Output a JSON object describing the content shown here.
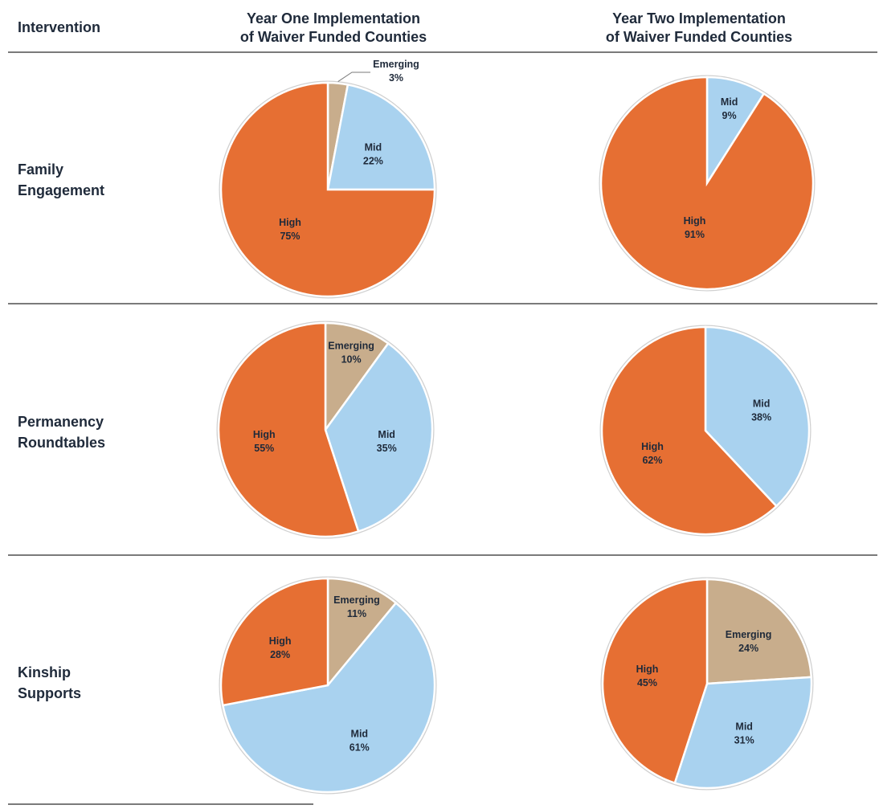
{
  "header": {
    "intervention": "Intervention",
    "year_one": [
      "Year One Implementation",
      "of Waiver Funded Counties"
    ],
    "year_two": [
      "Year Two Implementation",
      "of Waiver Funded Counties"
    ]
  },
  "rows": [
    {
      "label": [
        "Family",
        "Engagement"
      ]
    },
    {
      "label": [
        "Permanency",
        "Roundtables"
      ]
    },
    {
      "label": [
        "Kinship",
        "Supports"
      ]
    }
  ],
  "colors": {
    "Emerging": "#c8ad8c",
    "Mid": "#a9d2ef",
    "High": "#e66f33",
    "text": "#1f2a3a",
    "rule": "#7a7a7a"
  },
  "chart_data": [
    {
      "type": "pie",
      "row": "Family Engagement",
      "column": "Year One Implementation of Waiver Funded Counties",
      "slices": [
        {
          "label": "Emerging",
          "value": 3
        },
        {
          "label": "Mid",
          "value": 22
        },
        {
          "label": "High",
          "value": 75
        }
      ]
    },
    {
      "type": "pie",
      "row": "Family Engagement",
      "column": "Year Two Implementation of Waiver Funded Counties",
      "slices": [
        {
          "label": "Mid",
          "value": 9
        },
        {
          "label": "High",
          "value": 91
        }
      ]
    },
    {
      "type": "pie",
      "row": "Permanency Roundtables",
      "column": "Year One Implementation of Waiver Funded Counties",
      "slices": [
        {
          "label": "Emerging",
          "value": 10
        },
        {
          "label": "Mid",
          "value": 35
        },
        {
          "label": "High",
          "value": 55
        }
      ]
    },
    {
      "type": "pie",
      "row": "Permanency Roundtables",
      "column": "Year Two Implementation of Waiver Funded Counties",
      "slices": [
        {
          "label": "Mid",
          "value": 38
        },
        {
          "label": "High",
          "value": 62
        }
      ]
    },
    {
      "type": "pie",
      "row": "Kinship Supports",
      "column": "Year One Implementation of Waiver Funded Counties",
      "slices": [
        {
          "label": "Emerging",
          "value": 11
        },
        {
          "label": "Mid",
          "value": 61
        },
        {
          "label": "High",
          "value": 28
        }
      ]
    },
    {
      "type": "pie",
      "row": "Kinship Supports",
      "column": "Year Two Implementation of Waiver Funded Counties",
      "slices": [
        {
          "label": "Emerging",
          "value": 24
        },
        {
          "label": "Mid",
          "value": 31
        },
        {
          "label": "High",
          "value": 45
        }
      ]
    }
  ]
}
